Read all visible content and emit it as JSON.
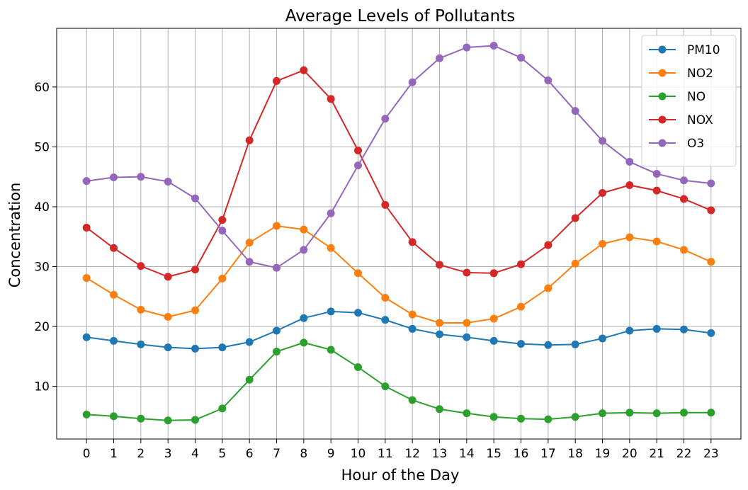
{
  "chart_data": {
    "type": "line",
    "title": "Average Levels of Pollutants",
    "xlabel": "Hour of the Day",
    "ylabel": "Concentration",
    "x": [
      0,
      1,
      2,
      3,
      4,
      5,
      6,
      7,
      8,
      9,
      10,
      11,
      12,
      13,
      14,
      15,
      16,
      17,
      18,
      19,
      20,
      21,
      22,
      23
    ],
    "yticks": [
      10,
      20,
      30,
      40,
      50,
      60
    ],
    "ylim": [
      1.2,
      69.8
    ],
    "grid": true,
    "legend_position": "top-right",
    "series": [
      {
        "name": "PM10",
        "color": "#1f77b4",
        "values": [
          18.2,
          17.6,
          17.0,
          16.5,
          16.3,
          16.5,
          17.4,
          19.3,
          21.4,
          22.5,
          22.3,
          21.1,
          19.6,
          18.7,
          18.2,
          17.6,
          17.1,
          16.9,
          17.0,
          18.0,
          19.3,
          19.6,
          19.5,
          18.9
        ]
      },
      {
        "name": "NO2",
        "color": "#ff7f0e",
        "values": [
          28.1,
          25.3,
          22.8,
          21.6,
          22.7,
          28.0,
          34.0,
          36.8,
          36.2,
          33.1,
          28.9,
          24.8,
          22.0,
          20.6,
          20.6,
          21.3,
          23.3,
          26.4,
          30.5,
          33.8,
          34.9,
          34.2,
          32.8,
          30.8
        ]
      },
      {
        "name": "NO",
        "color": "#2ca02c",
        "values": [
          5.3,
          5.0,
          4.6,
          4.3,
          4.4,
          6.3,
          11.1,
          15.8,
          17.3,
          16.1,
          13.2,
          10.0,
          7.7,
          6.2,
          5.5,
          4.9,
          4.6,
          4.5,
          4.9,
          5.5,
          5.6,
          5.5,
          5.6,
          5.6
        ]
      },
      {
        "name": "NOX",
        "color": "#d62728",
        "values": [
          36.5,
          33.1,
          30.1,
          28.3,
          29.5,
          37.8,
          51.1,
          61.0,
          62.8,
          58.0,
          49.4,
          40.3,
          34.1,
          30.3,
          29.0,
          28.9,
          30.4,
          33.6,
          38.1,
          42.3,
          43.6,
          42.7,
          41.3,
          39.4
        ]
      },
      {
        "name": "O3",
        "color": "#9467bd",
        "values": [
          44.3,
          44.9,
          45.0,
          44.2,
          41.4,
          36.0,
          30.8,
          29.8,
          32.8,
          38.9,
          46.9,
          54.7,
          60.8,
          64.8,
          66.6,
          66.9,
          64.9,
          61.1,
          56.0,
          51.0,
          47.5,
          45.5,
          44.4,
          43.9
        ]
      }
    ]
  }
}
